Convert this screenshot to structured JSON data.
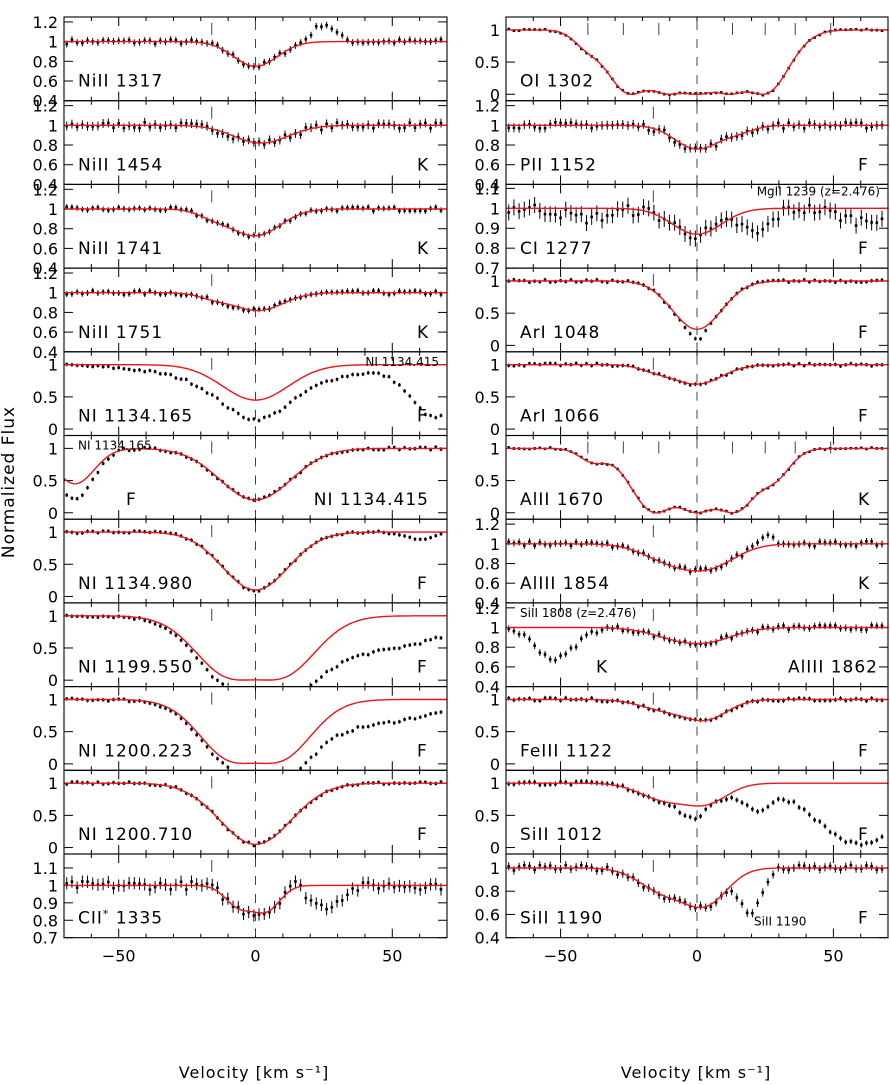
{
  "figure": {
    "xlabel": "Velocity [km s⁻¹]",
    "ylabel": "Normalized Flux"
  },
  "chart_data": {
    "type": "line",
    "title": "",
    "xlabel": "Velocity [km s⁻¹]",
    "ylabel": "Normalized Flux",
    "xlim": [
      -70,
      70
    ],
    "xticks": [
      -50,
      0,
      50
    ],
    "xtick_labels": [
      "−50",
      "0",
      "50"
    ],
    "grid": false,
    "series_legend": "black points with error bars = data, red line = model fit",
    "colors": {
      "model": "#e8151a",
      "data": "#000000"
    },
    "panels": [
      {
        "col": 0,
        "row": 0,
        "ion": "NiII",
        "wave": "1317",
        "tag": "",
        "ylim": [
          0.4,
          1.25
        ],
        "yticks": [
          0.4,
          0.6,
          0.8,
          1.0,
          1.2
        ],
        "ytick_labels": [
          "0.4",
          "0.6",
          "0.8",
          "1",
          "1.2"
        ],
        "comps": [
          {
            "v": 0,
            "d": 0.25,
            "w": 8
          }
        ],
        "extra": [
          {
            "v": 25,
            "d": -0.18,
            "w": 4
          }
        ],
        "noise": 0.035,
        "marks": [
          -16,
          0
        ],
        "annot": ""
      },
      {
        "col": 0,
        "row": 1,
        "ion": "NiII",
        "wave": "1454",
        "tag": "K",
        "ylim": [
          0.4,
          1.25
        ],
        "yticks": [
          0.4,
          0.6,
          0.8,
          1.0,
          1.2
        ],
        "ytick_labels": [
          "0.4",
          "0.6",
          "0.8",
          "1",
          "1.2"
        ],
        "comps": [
          {
            "v": 2,
            "d": 0.18,
            "w": 10
          }
        ],
        "extra": [],
        "noise": 0.045,
        "marks": [
          -16,
          0
        ],
        "annot": ""
      },
      {
        "col": 0,
        "row": 2,
        "ion": "NiII",
        "wave": "1741",
        "tag": "K",
        "ylim": [
          0.4,
          1.25
        ],
        "yticks": [
          0.4,
          0.6,
          0.8,
          1.0,
          1.2
        ],
        "ytick_labels": [
          "0.4",
          "0.6",
          "0.8",
          "1",
          "1.2"
        ],
        "comps": [
          {
            "v": 0,
            "d": 0.27,
            "w": 9
          },
          {
            "v": -15,
            "d": 0.07,
            "w": 6
          }
        ],
        "extra": [],
        "noise": 0.03,
        "marks": [
          -16,
          0
        ],
        "annot": ""
      },
      {
        "col": 0,
        "row": 3,
        "ion": "NiII",
        "wave": "1751",
        "tag": "K",
        "ylim": [
          0.4,
          1.25
        ],
        "yticks": [
          0.4,
          0.6,
          0.8,
          1.0,
          1.2
        ],
        "ytick_labels": [
          "0.4",
          "0.6",
          "0.8",
          "1",
          "1.2"
        ],
        "comps": [
          {
            "v": 1,
            "d": 0.18,
            "w": 9
          },
          {
            "v": -15,
            "d": 0.05,
            "w": 6
          }
        ],
        "extra": [],
        "noise": 0.03,
        "marks": [
          -16,
          0
        ],
        "annot": ""
      },
      {
        "col": 0,
        "row": 4,
        "ion": "NI",
        "wave": "1134.165",
        "tag": "F",
        "ylim": [
          -0.1,
          1.2
        ],
        "yticks": [
          0,
          0.5,
          1.0
        ],
        "ytick_labels": [
          "0",
          "0.5",
          "1"
        ],
        "comps": [
          {
            "v": 0,
            "d": 0.55,
            "w": 12
          }
        ],
        "extra": [
          {
            "v": 2,
            "d": 0.3,
            "w": 28
          },
          {
            "v": 66,
            "d": 0.8,
            "w": 9
          }
        ],
        "noise": 0.03,
        "marks": [
          -16,
          0
        ],
        "annot": "NI 1134.415"
      },
      {
        "col": 0,
        "row": 5,
        "ion": "NI",
        "wave": "1134.415",
        "tag": "F",
        "ylim": [
          -0.1,
          1.2
        ],
        "yticks": [
          0,
          0.5,
          1.0
        ],
        "ytick_labels": [
          "0",
          "0.5",
          "1"
        ],
        "comps": [
          {
            "v": 0,
            "d": 0.8,
            "w": 13
          },
          {
            "v": -66,
            "d": 0.55,
            "w": 7
          }
        ],
        "extra": [
          {
            "v": -66,
            "d": 0.25,
            "w": 6
          }
        ],
        "noise": 0.03,
        "marks": [
          -16,
          0
        ],
        "annot": "NI 1134.165"
      },
      {
        "col": 0,
        "row": 6,
        "ion": "NI",
        "wave": "1134.980",
        "tag": "F",
        "ylim": [
          -0.1,
          1.2
        ],
        "yticks": [
          0,
          0.5,
          1.0
        ],
        "ytick_labels": [
          "0",
          "0.5",
          "1"
        ],
        "comps": [
          {
            "v": 0,
            "d": 0.9,
            "w": 12
          }
        ],
        "extra": [
          {
            "v": 60,
            "d": 0.1,
            "w": 6
          }
        ],
        "noise": 0.03,
        "marks": [
          -16,
          0
        ],
        "annot": ""
      },
      {
        "col": 0,
        "row": 7,
        "ion": "NI",
        "wave": "1199.550",
        "tag": "F",
        "ylim": [
          -0.1,
          1.2
        ],
        "yticks": [
          0,
          0.5,
          1.0
        ],
        "ytick_labels": [
          "0",
          "0.5",
          "1"
        ],
        "comps": [
          {
            "v": -5,
            "d": 0.99,
            "w": 14
          },
          {
            "v": 5,
            "d": 0.99,
            "w": 14
          }
        ],
        "extra": [
          {
            "v": 38,
            "d": 0.55,
            "w": 30
          }
        ],
        "noise": 0.03,
        "marks": [
          -16,
          0
        ],
        "annot": ""
      },
      {
        "col": 0,
        "row": 8,
        "ion": "NI",
        "wave": "1200.223",
        "tag": "F",
        "ylim": [
          -0.1,
          1.2
        ],
        "yticks": [
          0,
          0.5,
          1.0
        ],
        "ytick_labels": [
          "0",
          "0.5",
          "1"
        ],
        "comps": [
          {
            "v": -5,
            "d": 0.97,
            "w": 13
          },
          {
            "v": 5,
            "d": 0.97,
            "w": 13
          }
        ],
        "extra": [
          {
            "v": 35,
            "d": 0.4,
            "w": 28
          }
        ],
        "noise": 0.03,
        "marks": [
          -16,
          0
        ],
        "annot": ""
      },
      {
        "col": 0,
        "row": 9,
        "ion": "NI",
        "wave": "1200.710",
        "tag": "F",
        "ylim": [
          -0.1,
          1.2
        ],
        "yticks": [
          0,
          0.5,
          1.0
        ],
        "ytick_labels": [
          "0",
          "0.5",
          "1"
        ],
        "comps": [
          {
            "v": 0,
            "d": 0.95,
            "w": 13
          }
        ],
        "extra": [],
        "noise": 0.03,
        "marks": [
          -16,
          0
        ],
        "annot": ""
      },
      {
        "col": 0,
        "row": 10,
        "ion": "CII*",
        "wave": "1335",
        "tag": "",
        "ylim": [
          0.7,
          1.18
        ],
        "yticks": [
          0.7,
          0.8,
          0.9,
          1.0,
          1.1
        ],
        "ytick_labels": [
          "0.7",
          "0.8",
          "0.9",
          "1",
          "1.1"
        ],
        "comps": [
          {
            "v": -6,
            "d": 0.12,
            "w": 5
          },
          {
            "v": 4,
            "d": 0.14,
            "w": 5
          }
        ],
        "extra": [
          {
            "v": 25,
            "d": 0.12,
            "w": 6
          },
          {
            "v": 14,
            "d": -0.05,
            "w": 3
          }
        ],
        "noise": 0.035,
        "marks": [
          -16,
          0
        ],
        "annot": ""
      },
      {
        "col": 1,
        "row": 0,
        "ion": "OI",
        "wave": "1302",
        "tag": "",
        "ylim": [
          -0.1,
          1.2
        ],
        "yticks": [
          0,
          0.5,
          1.0
        ],
        "ytick_labels": [
          "0",
          "0.5",
          "1"
        ],
        "comps": [
          {
            "v": -24,
            "d": 1.0,
            "w": 9
          },
          {
            "v": -10,
            "d": 1.0,
            "w": 9
          },
          {
            "v": 0,
            "d": 1.0,
            "w": 9
          },
          {
            "v": 12,
            "d": 1.0,
            "w": 9
          },
          {
            "v": 24,
            "d": 1.0,
            "w": 9
          },
          {
            "v": -40,
            "d": 0.2,
            "w": 5
          }
        ],
        "extra": [],
        "noise": 0.02,
        "marks": [
          -40,
          -27,
          -14,
          0,
          13,
          25,
          36,
          49
        ],
        "annot": ""
      },
      {
        "col": 1,
        "row": 1,
        "ion": "PII",
        "wave": "1152",
        "tag": "F",
        "ylim": [
          0.4,
          1.25
        ],
        "yticks": [
          0.4,
          0.6,
          0.8,
          1.0,
          1.2
        ],
        "ytick_labels": [
          "0.4",
          "0.6",
          "0.8",
          "1",
          "1.2"
        ],
        "comps": [
          {
            "v": 0,
            "d": 0.24,
            "w": 8
          },
          {
            "v": 15,
            "d": 0.06,
            "w": 6
          }
        ],
        "extra": [],
        "noise": 0.045,
        "marks": [
          -16,
          0
        ],
        "annot": ""
      },
      {
        "col": 1,
        "row": 2,
        "ion": "CI",
        "wave": "1277",
        "tag": "F",
        "ylim": [
          0.7,
          1.12
        ],
        "yticks": [
          0.7,
          0.8,
          0.9,
          1.0,
          1.1
        ],
        "ytick_labels": [
          "0.7",
          "0.8",
          "0.9",
          "1",
          "1.1"
        ],
        "comps": [
          {
            "v": 0,
            "d": 0.13,
            "w": 9
          }
        ],
        "extra": [
          {
            "v": 22,
            "d": 0.12,
            "w": 5
          },
          {
            "v": -40,
            "d": 0.05,
            "w": 8
          },
          {
            "v": 60,
            "d": 0.06,
            "w": 8
          }
        ],
        "noise": 0.04,
        "marks": [
          -16,
          0
        ],
        "annot": "MgII 1239 (z=2.476)"
      },
      {
        "col": 1,
        "row": 3,
        "ion": "ArI",
        "wave": "1048",
        "tag": "F",
        "ylim": [
          -0.1,
          1.2
        ],
        "yticks": [
          0,
          0.5,
          1.0
        ],
        "ytick_labels": [
          "0",
          "0.5",
          "1"
        ],
        "comps": [
          {
            "v": 0,
            "d": 0.75,
            "w": 9
          }
        ],
        "extra": [
          {
            "v": 0,
            "d": 0.15,
            "w": 3
          }
        ],
        "noise": 0.03,
        "marks": [
          -16,
          0
        ],
        "annot": ""
      },
      {
        "col": 1,
        "row": 4,
        "ion": "ArI",
        "wave": "1066",
        "tag": "F",
        "ylim": [
          -0.1,
          1.2
        ],
        "yticks": [
          0,
          0.5,
          1.0
        ],
        "ytick_labels": [
          "0",
          "0.5",
          "1"
        ],
        "comps": [
          {
            "v": 0,
            "d": 0.3,
            "w": 9
          },
          {
            "v": -15,
            "d": 0.08,
            "w": 6
          }
        ],
        "extra": [],
        "noise": 0.03,
        "marks": [
          -16,
          0
        ],
        "annot": ""
      },
      {
        "col": 1,
        "row": 5,
        "ion": "AlII",
        "wave": "1670",
        "tag": "K",
        "ylim": [
          -0.1,
          1.2
        ],
        "yticks": [
          0,
          0.5,
          1.0
        ],
        "ytick_labels": [
          "0",
          "0.5",
          "1"
        ],
        "comps": [
          {
            "v": -15,
            "d": 1.0,
            "w": 9
          },
          {
            "v": 0,
            "d": 1.0,
            "w": 9
          },
          {
            "v": 13,
            "d": 1.0,
            "w": 9
          },
          {
            "v": -38,
            "d": 0.2,
            "w": 5
          },
          {
            "v": 28,
            "d": 0.4,
            "w": 6
          }
        ],
        "extra": [],
        "noise": 0.02,
        "marks": [
          -40,
          -27,
          -14,
          0,
          13,
          25,
          36,
          49
        ],
        "annot": ""
      },
      {
        "col": 1,
        "row": 6,
        "ion": "AlIII",
        "wave": "1854",
        "tag": "K",
        "ylim": [
          0.4,
          1.25
        ],
        "yticks": [
          0.4,
          0.6,
          0.8,
          1.0,
          1.2
        ],
        "ytick_labels": [
          "0.4",
          "0.6",
          "0.8",
          "1",
          "1.2"
        ],
        "comps": [
          {
            "v": -10,
            "d": 0.15,
            "w": 10
          },
          {
            "v": 4,
            "d": 0.22,
            "w": 10
          }
        ],
        "extra": [
          {
            "v": 25,
            "d": -0.12,
            "w": 3
          }
        ],
        "noise": 0.035,
        "marks": [
          -16,
          0
        ],
        "annot": ""
      },
      {
        "col": 1,
        "row": 7,
        "ion": "AlIII",
        "wave": "1862",
        "tag": "K",
        "ylim": [
          0.4,
          1.25
        ],
        "yticks": [
          0.4,
          0.6,
          0.8,
          1.0,
          1.2
        ],
        "ytick_labels": [
          "0.4",
          "0.6",
          "0.8",
          "1",
          "1.2"
        ],
        "comps": [
          {
            "v": -8,
            "d": 0.08,
            "w": 10
          },
          {
            "v": 4,
            "d": 0.12,
            "w": 10
          }
        ],
        "extra": [
          {
            "v": -52,
            "d": 0.32,
            "w": 7
          }
        ],
        "noise": 0.035,
        "marks": [
          -16,
          0
        ],
        "annot": "SiII 1808 (z=2.476)"
      },
      {
        "col": 1,
        "row": 8,
        "ion": "FeIII",
        "wave": "1122",
        "tag": "F",
        "ylim": [
          -0.1,
          1.2
        ],
        "yticks": [
          0,
          0.5,
          1.0
        ],
        "ytick_labels": [
          "0",
          "0.5",
          "1"
        ],
        "comps": [
          {
            "v": -12,
            "d": 0.15,
            "w": 9
          },
          {
            "v": 3,
            "d": 0.3,
            "w": 8
          }
        ],
        "extra": [],
        "noise": 0.035,
        "marks": [
          -16,
          0
        ],
        "annot": ""
      },
      {
        "col": 1,
        "row": 9,
        "ion": "SiII",
        "wave": "1012",
        "tag": "F",
        "ylim": [
          -0.1,
          1.2
        ],
        "yticks": [
          0,
          0.5,
          1.0
        ],
        "ytick_labels": [
          "0",
          "0.5",
          "1"
        ],
        "comps": [
          {
            "v": -12,
            "d": 0.25,
            "w": 9
          },
          {
            "v": 3,
            "d": 0.3,
            "w": 8
          }
        ],
        "extra": [
          {
            "v": -2,
            "d": 0.2,
            "w": 4
          },
          {
            "v": 22,
            "d": 0.35,
            "w": 5
          },
          {
            "v": 60,
            "d": 0.95,
            "w": 16
          }
        ],
        "noise": 0.04,
        "marks": [
          -16,
          0
        ],
        "annot": ""
      },
      {
        "col": 1,
        "row": 10,
        "ion": "SiII",
        "wave": "1190",
        "tag": "F",
        "ylim": [
          0.4,
          1.12
        ],
        "yticks": [
          0.4,
          0.6,
          0.8,
          1.0
        ],
        "ytick_labels": [
          "0.4",
          "0.6",
          "0.8",
          "1"
        ],
        "comps": [
          {
            "v": -12,
            "d": 0.2,
            "w": 9
          },
          {
            "v": 3,
            "d": 0.3,
            "w": 8
          }
        ],
        "extra": [
          {
            "v": 20,
            "d": 0.35,
            "w": 4
          }
        ],
        "noise": 0.035,
        "marks": [
          -16,
          0
        ],
        "annot": "SiII 1190"
      }
    ]
  }
}
